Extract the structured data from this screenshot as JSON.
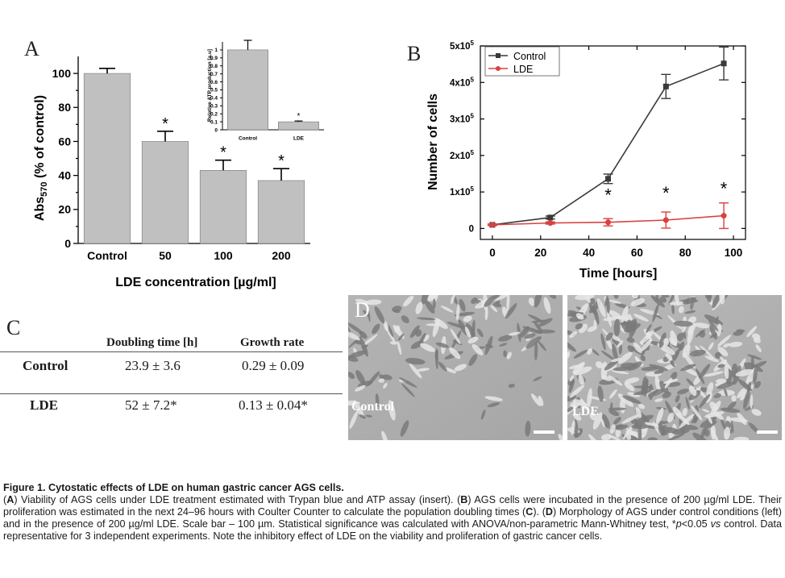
{
  "panel_a": {
    "letter": "A",
    "ylabel_main": "Abs",
    "ylabel_sub": "570",
    "ylabel_rest": " (% of control)",
    "xlabel": "LDE concentration [µg/ml]",
    "inset_ylabel": "Relative ATP production [a.u]"
  },
  "panel_b": {
    "letter": "B",
    "xlabel": "Time [hours]",
    "ylabel": "Number of cells",
    "legend": [
      "Control",
      "LDE"
    ]
  },
  "panel_c": {
    "letter": "C",
    "col_headers": [
      "Doubling time [h]",
      "Growth rate"
    ],
    "rows": [
      {
        "label": "Control",
        "doubling": "23.9 ± 3.6",
        "growth": "0.29 ± 0.09"
      },
      {
        "label": "LDE",
        "doubling": "52 ± 7.2*",
        "growth": "0.13 ± 0.04*"
      }
    ]
  },
  "panel_d": {
    "letter": "D",
    "left_label": "Control",
    "right_label": "LDE"
  },
  "caption": {
    "title": "Figure 1. Cytostatic effects of LDE on human gastric cancer AGS cells.",
    "p1a": "(",
    "p1b": "A",
    "p1c": ") Viability of AGS cells under LDE treatment estimated with Trypan blue and ATP assay (insert). (",
    "p1d": "B",
    "p1e": ") AGS cells were incubated in the presence of 200 µg/ml LDE. Their proliferation was estimated in the next 24–96 hours with Coulter Counter to calculate the population doubling times (",
    "p1f": "C",
    "p1g": "). (",
    "p1h": "D",
    "p1i": ") Morphology of AGS under control conditions (left) and in the presence of 200 µg/ml LDE. Scale bar – 100 µm. Statistical significance was calculated with ANOVA/non-parametric Mann-Whitney test, *",
    "p1j": "p",
    "p1k": "<0.05 ",
    "p1l": "vs",
    "p1m": " control. Data representative for 3 independent experiments. Note the inhibitory effect of LDE on the viability and proliferation of gastric cancer cells."
  },
  "chart_data": [
    {
      "type": "bar",
      "categories": [
        "Control",
        "50",
        "100",
        "200"
      ],
      "values": [
        100,
        60,
        43,
        37
      ],
      "errors": [
        3,
        6,
        6,
        7
      ],
      "significance": [
        "",
        "*",
        "*",
        "*"
      ],
      "ylim": [
        0,
        110
      ],
      "yticks": [
        "0",
        "20",
        "40",
        "60",
        "80",
        "100"
      ],
      "xlabel": "LDE concentration [µg/ml]",
      "ylabel": "Abs570 (% of control)",
      "bar_color": "#c0c0c0"
    },
    {
      "type": "bar",
      "categories": [
        "Control",
        "LDE"
      ],
      "values": [
        1.0,
        0.1
      ],
      "errors": [
        0.12,
        0.01
      ],
      "significance": [
        "",
        "*"
      ],
      "ylim": [
        0,
        1.1
      ],
      "yticks": [
        "0",
        "0.1",
        "0.2",
        "0.3",
        "0.4",
        "0.5",
        "0.6",
        "0.7",
        "0.8",
        "0.9",
        "1"
      ],
      "ylabel": "Relative ATP production [a.u]",
      "bar_color": "#c0c0c0"
    },
    {
      "type": "line",
      "x": [
        0,
        24,
        48,
        72,
        96
      ],
      "series": [
        {
          "name": "Control",
          "values": [
            10000,
            30000,
            136000,
            389000,
            452000
          ],
          "errors": [
            2000,
            4000,
            13000,
            33000,
            45000
          ],
          "color": "#3a3a3a",
          "marker": "square"
        },
        {
          "name": "LDE",
          "values": [
            10000,
            15000,
            17000,
            23000,
            35000
          ],
          "errors": [
            2000,
            3000,
            10000,
            22000,
            35000
          ],
          "color": "#d94040",
          "marker": "circle",
          "significance": [
            "",
            "",
            "*",
            "*",
            "*"
          ]
        }
      ],
      "xticks": [
        "0",
        "20",
        "40",
        "60",
        "80",
        "100"
      ],
      "yticks": [
        "0",
        "1x10^5",
        "2x10^5",
        "3x10^5",
        "4x10^5",
        "5x10^5"
      ],
      "xlim": [
        -5,
        105
      ],
      "ylim": [
        -30000,
        500000
      ],
      "xlabel": "Time [hours]",
      "ylabel": "Number of cells",
      "legend_position": "top-left"
    }
  ]
}
